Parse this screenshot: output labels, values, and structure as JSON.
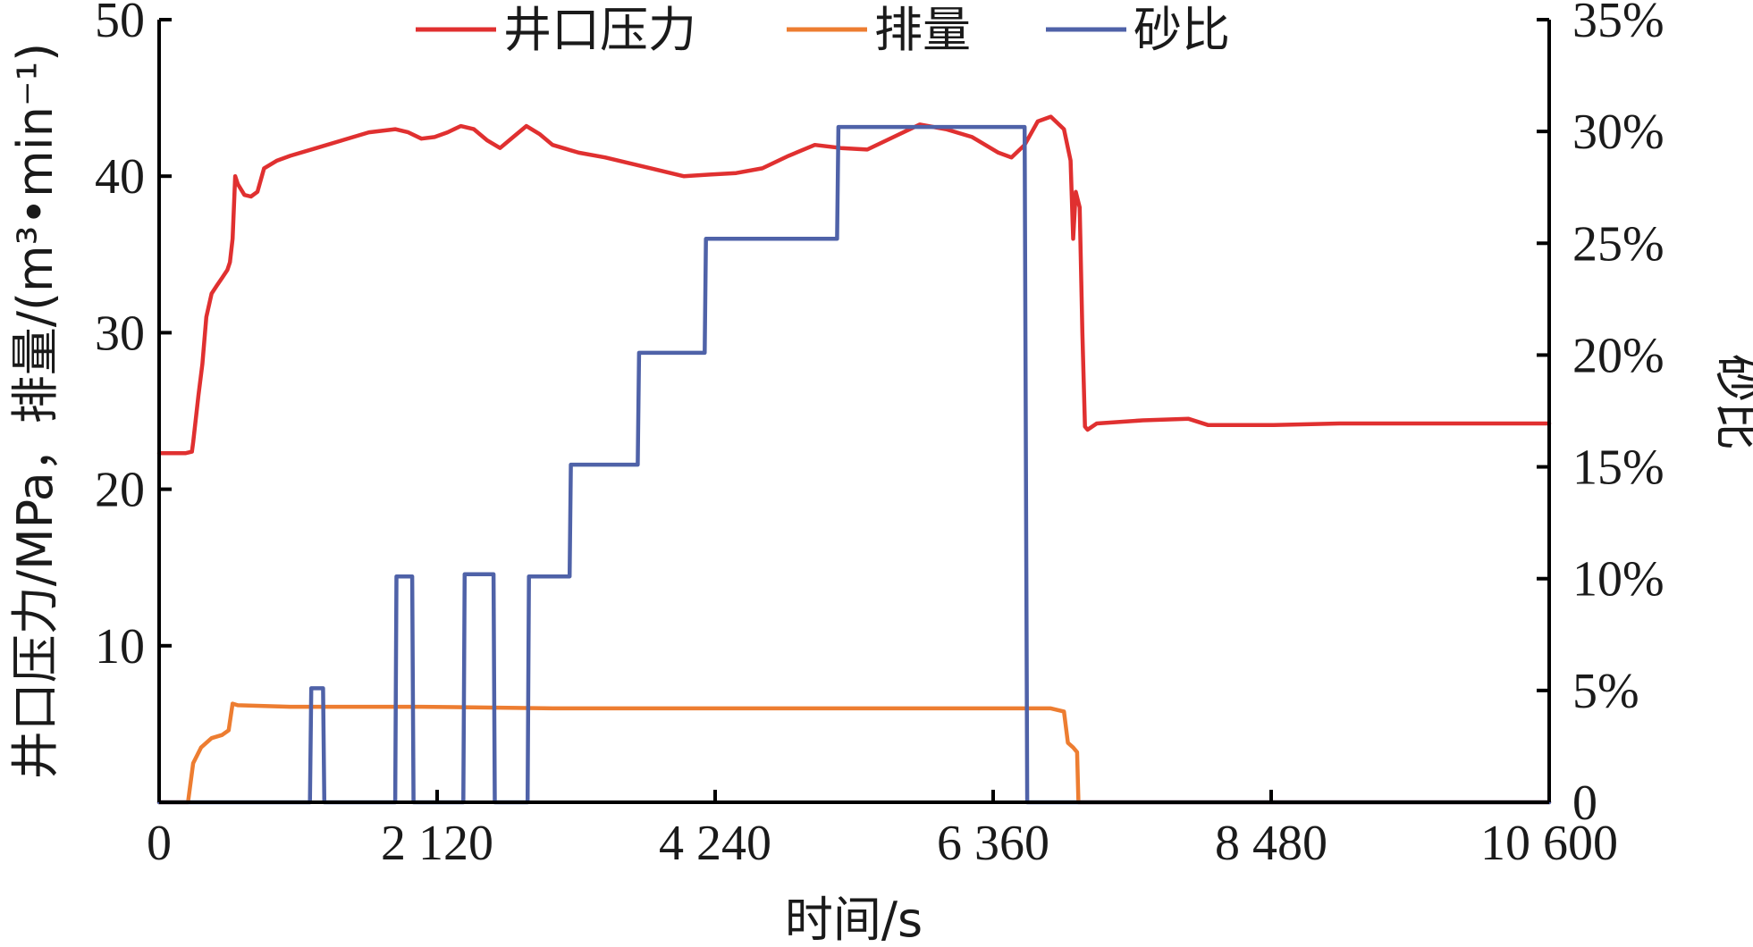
{
  "chart_data": {
    "type": "line",
    "title": "",
    "xlabel": "时间/s",
    "ylabel": "井口压力/MPa，排量/(m³•min⁻¹)",
    "y2label": "砂比",
    "xlim": [
      0,
      10600
    ],
    "ylim": [
      0,
      50
    ],
    "y2lim": [
      0,
      35
    ],
    "x_ticks": [
      {
        "value": 0,
        "label": "0"
      },
      {
        "value": 2120,
        "label": "2 120"
      },
      {
        "value": 4240,
        "label": "4 240"
      },
      {
        "value": 6360,
        "label": "6 360"
      },
      {
        "value": 8480,
        "label": "8 480"
      },
      {
        "value": 10600,
        "label": "10 600"
      }
    ],
    "y_ticks": [
      {
        "value": 10,
        "label": "10"
      },
      {
        "value": 20,
        "label": "20"
      },
      {
        "value": 30,
        "label": "30"
      },
      {
        "value": 40,
        "label": "40"
      },
      {
        "value": 50,
        "label": "50"
      }
    ],
    "y2_ticks": [
      {
        "value": 0,
        "label": "0"
      },
      {
        "value": 5,
        "label": "5%"
      },
      {
        "value": 10,
        "label": "10%"
      },
      {
        "value": 15,
        "label": "15%"
      },
      {
        "value": 20,
        "label": "20%"
      },
      {
        "value": 25,
        "label": "25%"
      },
      {
        "value": 30,
        "label": "30%"
      },
      {
        "value": 35,
        "label": "35%"
      }
    ],
    "legend_position": "top-center",
    "grid": false,
    "series": [
      {
        "name": "井口压力",
        "axis": "left",
        "color": "#e03030",
        "points": [
          [
            0,
            22.3
          ],
          [
            200,
            22.3
          ],
          [
            250,
            22.4
          ],
          [
            260,
            23.0
          ],
          [
            300,
            26.0
          ],
          [
            330,
            28.0
          ],
          [
            360,
            31.0
          ],
          [
            400,
            32.5
          ],
          [
            440,
            33.0
          ],
          [
            480,
            33.5
          ],
          [
            520,
            34.0
          ],
          [
            540,
            34.5
          ],
          [
            560,
            36.0
          ],
          [
            580,
            40.0
          ],
          [
            600,
            39.5
          ],
          [
            650,
            38.8
          ],
          [
            700,
            38.7
          ],
          [
            750,
            39.0
          ],
          [
            800,
            40.5
          ],
          [
            900,
            41.0
          ],
          [
            1000,
            41.3
          ],
          [
            1200,
            41.8
          ],
          [
            1400,
            42.3
          ],
          [
            1600,
            42.8
          ],
          [
            1800,
            43.0
          ],
          [
            1900,
            42.8
          ],
          [
            2000,
            42.4
          ],
          [
            2100,
            42.5
          ],
          [
            2200,
            42.8
          ],
          [
            2300,
            43.2
          ],
          [
            2400,
            43.0
          ],
          [
            2500,
            42.3
          ],
          [
            2600,
            41.8
          ],
          [
            2700,
            42.5
          ],
          [
            2800,
            43.2
          ],
          [
            2900,
            42.7
          ],
          [
            3000,
            42.0
          ],
          [
            3200,
            41.5
          ],
          [
            3400,
            41.2
          ],
          [
            3600,
            40.8
          ],
          [
            3800,
            40.4
          ],
          [
            4000,
            40.0
          ],
          [
            4200,
            40.1
          ],
          [
            4400,
            40.2
          ],
          [
            4600,
            40.5
          ],
          [
            4800,
            41.3
          ],
          [
            5000,
            42.0
          ],
          [
            5200,
            41.8
          ],
          [
            5400,
            41.7
          ],
          [
            5600,
            42.5
          ],
          [
            5800,
            43.3
          ],
          [
            6000,
            43.0
          ],
          [
            6200,
            42.5
          ],
          [
            6400,
            41.5
          ],
          [
            6500,
            41.2
          ],
          [
            6600,
            42.0
          ],
          [
            6700,
            43.5
          ],
          [
            6800,
            43.8
          ],
          [
            6900,
            43.0
          ],
          [
            6950,
            41.0
          ],
          [
            6970,
            36.0
          ],
          [
            6990,
            39.0
          ],
          [
            7020,
            38.0
          ],
          [
            7040,
            30.0
          ],
          [
            7060,
            24.0
          ],
          [
            7080,
            23.8
          ],
          [
            7150,
            24.2
          ],
          [
            7500,
            24.4
          ],
          [
            7850,
            24.5
          ],
          [
            8000,
            24.1
          ],
          [
            8500,
            24.1
          ],
          [
            9000,
            24.2
          ],
          [
            9500,
            24.2
          ],
          [
            10000,
            24.2
          ],
          [
            10600,
            24.2
          ]
        ]
      },
      {
        "name": "排量",
        "axis": "left",
        "color": "#ed7d31",
        "points": [
          [
            0,
            0
          ],
          [
            220,
            0
          ],
          [
            260,
            2.5
          ],
          [
            320,
            3.5
          ],
          [
            400,
            4.1
          ],
          [
            480,
            4.3
          ],
          [
            530,
            4.6
          ],
          [
            560,
            6.3
          ],
          [
            600,
            6.2
          ],
          [
            1000,
            6.1
          ],
          [
            2000,
            6.1
          ],
          [
            3000,
            6.0
          ],
          [
            4000,
            6.0
          ],
          [
            5000,
            6.0
          ],
          [
            6000,
            6.0
          ],
          [
            6800,
            6.0
          ],
          [
            6900,
            5.8
          ],
          [
            6930,
            3.8
          ],
          [
            6970,
            3.5
          ],
          [
            7000,
            3.2
          ],
          [
            7010,
            0
          ],
          [
            10600,
            0
          ]
        ]
      },
      {
        "name": "砂比",
        "axis": "right",
        "color": "#4f62a8",
        "points": [
          [
            0,
            0
          ],
          [
            1150,
            0
          ],
          [
            1160,
            5.1
          ],
          [
            1250,
            5.1
          ],
          [
            1260,
            0
          ],
          [
            1800,
            0
          ],
          [
            1810,
            10.1
          ],
          [
            1930,
            10.1
          ],
          [
            1940,
            0
          ],
          [
            2320,
            0
          ],
          [
            2330,
            10.2
          ],
          [
            2550,
            10.2
          ],
          [
            2560,
            0
          ],
          [
            2810,
            0
          ],
          [
            2820,
            10.1
          ],
          [
            3130,
            10.1
          ],
          [
            3140,
            15.1
          ],
          [
            3650,
            15.1
          ],
          [
            3660,
            20.1
          ],
          [
            4160,
            20.1
          ],
          [
            4170,
            25.2
          ],
          [
            5170,
            25.2
          ],
          [
            5180,
            30.2
          ],
          [
            6600,
            30.2
          ],
          [
            6620,
            0
          ],
          [
            10600,
            0
          ]
        ]
      }
    ]
  }
}
